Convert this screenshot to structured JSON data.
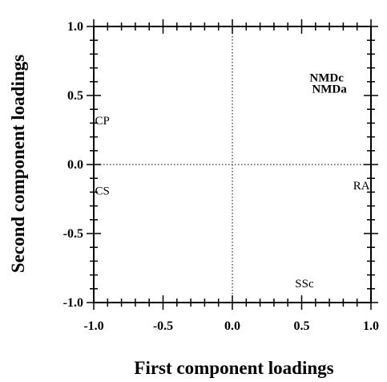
{
  "chart_data": {
    "type": "scatter",
    "title": "",
    "xlabel": "First component loadings",
    "ylabel": "Second component loadings",
    "xlim": [
      -1.0,
      1.0
    ],
    "ylim": [
      -1.0,
      1.0
    ],
    "x_ticks": [
      "-1.0",
      "-0.5",
      "0.0",
      "0.5",
      "1.0"
    ],
    "y_ticks": [
      "1.0",
      "0.5",
      "0.0",
      "-0.5",
      "-1.0"
    ],
    "grid": false,
    "reference_lines": "dotted lines at x = 0 and y = 0",
    "points": [
      {
        "label": "NMDc",
        "x": 0.68,
        "y": 0.63
      },
      {
        "label": "NMDa",
        "x": 0.7,
        "y": 0.55
      },
      {
        "label": "CP",
        "x": -0.98,
        "y": 0.32
      },
      {
        "label": "CS",
        "x": -0.98,
        "y": -0.19
      },
      {
        "label": "RA",
        "x": 0.98,
        "y": -0.15
      },
      {
        "label": "SSc",
        "x": 0.52,
        "y": -0.86
      }
    ]
  }
}
